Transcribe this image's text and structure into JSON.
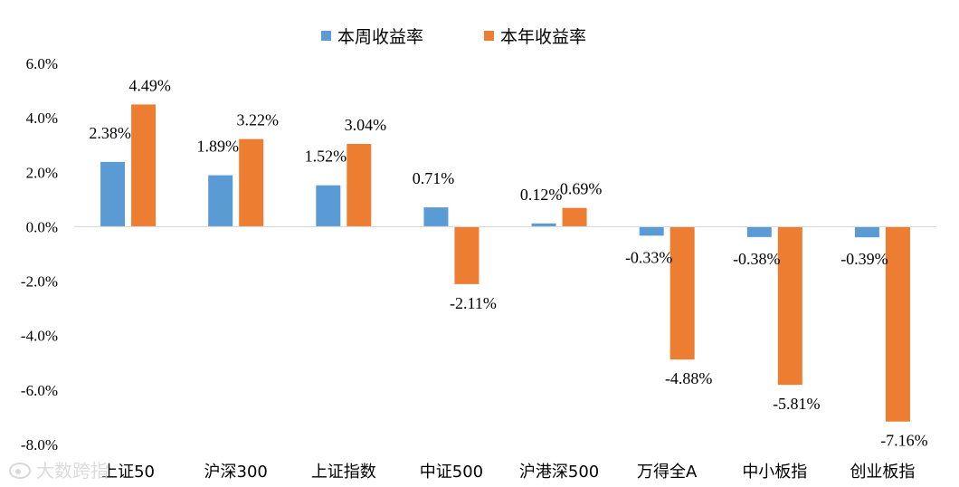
{
  "chart_data": {
    "type": "bar",
    "title": "",
    "xlabel": "",
    "ylabel": "",
    "ylim": [
      -8.0,
      6.0
    ],
    "ytick_step": 2.0,
    "ytick_labels": [
      "6.0%",
      "4.0%",
      "2.0%",
      "0.0%",
      "-2.0%",
      "-4.0%",
      "-6.0%",
      "-8.0%"
    ],
    "grid": false,
    "legend_position": "top-center",
    "categories": [
      "上证50",
      "沪深300",
      "上证指数",
      "中证500",
      "沪港深500",
      "万得全A",
      "中小板指",
      "创业板指"
    ],
    "series": [
      {
        "name": "本周收益率",
        "color": "#5b9bd5",
        "values": [
          2.38,
          1.89,
          1.52,
          0.71,
          0.12,
          -0.33,
          -0.38,
          -0.39
        ],
        "labels": [
          "2.38%",
          "1.89%",
          "1.52%",
          "0.71%",
          "0.12%",
          "-0.33%",
          "-0.38%",
          "-0.39%"
        ]
      },
      {
        "name": "本年收益率",
        "color": "#ed7d31",
        "values": [
          4.49,
          3.22,
          3.04,
          -2.11,
          0.69,
          -4.88,
          -5.81,
          -7.16
        ],
        "labels": [
          "4.49%",
          "3.22%",
          "3.04%",
          "-2.11%",
          "0.69%",
          "-4.88%",
          "-5.81%",
          "-7.16%"
        ]
      }
    ]
  },
  "watermark": {
    "text": "大数跨指",
    "icon": "weibo-icon"
  }
}
